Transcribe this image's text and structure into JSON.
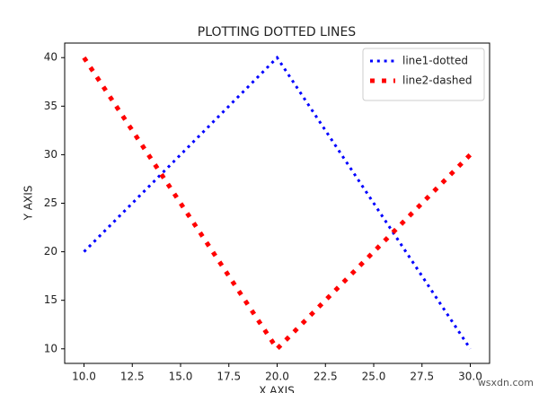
{
  "chart_data": {
    "type": "line",
    "title": "PLOTTING DOTTED LINES",
    "x_label": "X AXIS",
    "y_label": "Y AXIS",
    "x": [
      10,
      20,
      30
    ],
    "series": [
      {
        "name": "line1-dotted",
        "color": "#0000ff",
        "linestyle": "dotted",
        "linewidth": 3,
        "values": [
          20,
          40,
          10
        ]
      },
      {
        "name": "line2-dashed",
        "color": "#ff0000",
        "linestyle": "dotted",
        "linewidth": 5,
        "values": [
          40,
          10,
          30
        ]
      }
    ],
    "xlim": [
      9,
      31
    ],
    "ylim": [
      8.5,
      41.5
    ],
    "xticks": [
      {
        "value": 10,
        "label": "10.0"
      },
      {
        "value": 12.5,
        "label": "12.5"
      },
      {
        "value": 15,
        "label": "15.0"
      },
      {
        "value": 17.5,
        "label": "17.5"
      },
      {
        "value": 20,
        "label": "20.0"
      },
      {
        "value": 22.5,
        "label": "22.5"
      },
      {
        "value": 25,
        "label": "25.0"
      },
      {
        "value": 27.5,
        "label": "27.5"
      },
      {
        "value": 30,
        "label": "30.0"
      }
    ],
    "yticks": [
      10,
      15,
      20,
      25,
      30,
      35,
      40
    ],
    "legend": "upper right",
    "grid": false,
    "watermark": "wsxdn.com"
  }
}
